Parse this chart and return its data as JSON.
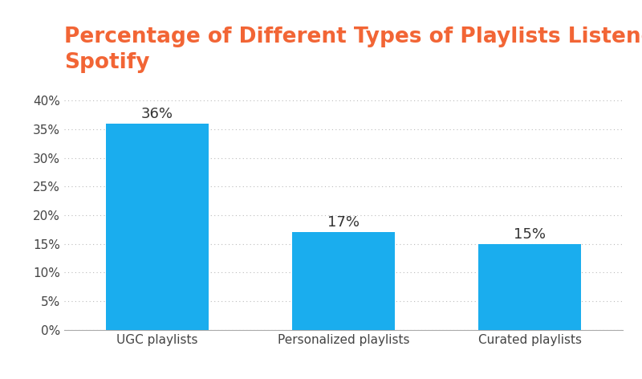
{
  "title": "Percentage of Different Types of Playlists Listened on\nSpotify",
  "categories": [
    "UGC playlists",
    "Personalized playlists",
    "Curated playlists"
  ],
  "values": [
    36,
    17,
    15
  ],
  "bar_color": "#1AADEE",
  "title_color": "#F26535",
  "label_color": "#333333",
  "background_color": "#ffffff",
  "ylim": [
    0,
    43
  ],
  "yticks": [
    0,
    5,
    10,
    15,
    20,
    25,
    30,
    35,
    40
  ],
  "title_fontsize": 19,
  "bar_label_fontsize": 13,
  "tick_label_fontsize": 11,
  "grid_color": "#bbbbbb",
  "bar_width": 0.55
}
